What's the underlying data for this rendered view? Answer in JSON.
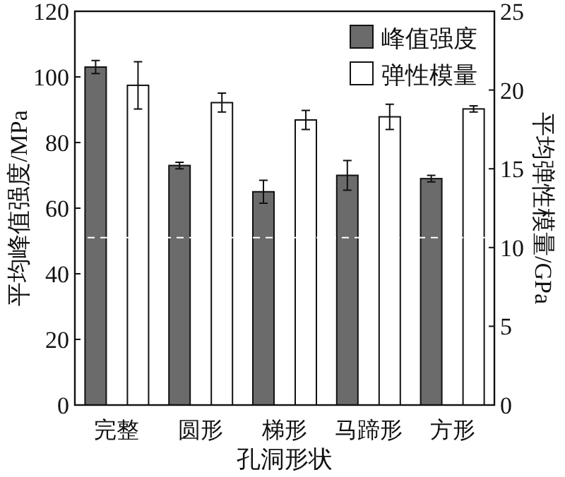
{
  "chart_data": {
    "type": "bar",
    "xlabel": "孔洞形状",
    "ylabel": "平均峰值强度/MPa",
    "y2label": "平均弹性模量/GPa",
    "categories": [
      "完整",
      "圆形",
      "梯形",
      "马蹄形",
      "方形"
    ],
    "series": [
      {
        "name": "峰值强度",
        "color": "#6b6b6b",
        "values": [
          103,
          73,
          65,
          70,
          69
        ],
        "errors": [
          2,
          1,
          3.5,
          4.5,
          1
        ]
      },
      {
        "name": "弹性模量",
        "color": "#ffffff",
        "axis": "y2",
        "values": [
          20.3,
          19.2,
          18.1,
          18.3,
          18.8
        ],
        "errors": [
          1.5,
          0.6,
          0.6,
          0.8,
          0.2
        ]
      }
    ],
    "ylim": [
      0,
      120
    ],
    "yticks": [
      0,
      20,
      40,
      60,
      80,
      100,
      120
    ],
    "y2lim": [
      0,
      25
    ],
    "y2ticks": [
      0,
      5,
      10,
      15,
      20,
      25
    ],
    "ref_lines": [
      {
        "axis": "y",
        "value": 51,
        "color": "#ffffff",
        "line_style": "dashed"
      }
    ],
    "grid": false,
    "legend": "top right"
  }
}
